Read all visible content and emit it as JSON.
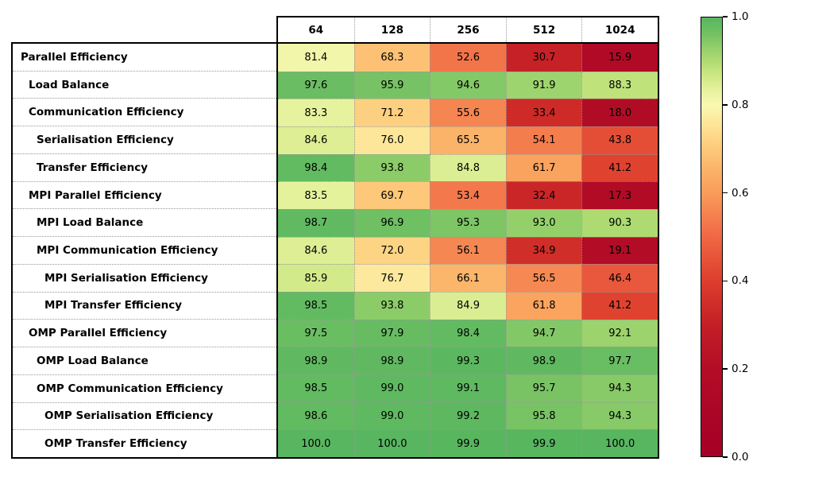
{
  "chart_data": {
    "type": "heatmap",
    "columns": [
      "64",
      "128",
      "256",
      "512",
      "1024"
    ],
    "rows": [
      {
        "name": "Parallel Efficiency",
        "indent": 0,
        "values": [
          81.4,
          68.3,
          52.6,
          30.7,
          15.9
        ]
      },
      {
        "name": "Load Balance",
        "indent": 1,
        "values": [
          97.6,
          95.9,
          94.6,
          91.9,
          88.3
        ]
      },
      {
        "name": "Communication Efficiency",
        "indent": 1,
        "values": [
          83.3,
          71.2,
          55.6,
          33.4,
          18.0
        ]
      },
      {
        "name": "Serialisation Efficiency",
        "indent": 2,
        "values": [
          84.6,
          76.0,
          65.5,
          54.1,
          43.8
        ]
      },
      {
        "name": "Transfer Efficiency",
        "indent": 2,
        "values": [
          98.4,
          93.8,
          84.8,
          61.7,
          41.2
        ]
      },
      {
        "name": "MPI Parallel Efficiency",
        "indent": 1,
        "values": [
          83.5,
          69.7,
          53.4,
          32.4,
          17.3
        ]
      },
      {
        "name": "MPI Load Balance",
        "indent": 2,
        "values": [
          98.7,
          96.9,
          95.3,
          93.0,
          90.3
        ]
      },
      {
        "name": "MPI Communication Efficiency",
        "indent": 2,
        "values": [
          84.6,
          72.0,
          56.1,
          34.9,
          19.1
        ]
      },
      {
        "name": "MPI Serialisation Efficiency",
        "indent": 3,
        "values": [
          85.9,
          76.7,
          66.1,
          56.5,
          46.4
        ]
      },
      {
        "name": "MPI Transfer Efficiency",
        "indent": 3,
        "values": [
          98.5,
          93.8,
          84.9,
          61.8,
          41.2
        ]
      },
      {
        "name": "OMP Parallel Efficiency",
        "indent": 1,
        "values": [
          97.5,
          97.9,
          98.4,
          94.7,
          92.1
        ]
      },
      {
        "name": "OMP Load Balance",
        "indent": 2,
        "values": [
          98.9,
          98.9,
          99.3,
          98.9,
          97.7
        ]
      },
      {
        "name": "OMP Communication Efficiency",
        "indent": 2,
        "values": [
          98.5,
          99.0,
          99.1,
          95.7,
          94.3
        ]
      },
      {
        "name": "OMP Serialisation Efficiency",
        "indent": 3,
        "values": [
          98.6,
          99.0,
          99.2,
          95.8,
          94.3
        ]
      },
      {
        "name": "OMP Transfer Efficiency",
        "indent": 3,
        "values": [
          100.0,
          100.0,
          99.9,
          99.9,
          100.0
        ]
      }
    ],
    "value_format_decimals": 1,
    "colorbar": {
      "min": 0.0,
      "max": 1.0,
      "ticks": [
        1.0,
        0.8,
        0.6,
        0.4,
        0.2,
        0.0
      ],
      "position": "right"
    },
    "colormap_stops": [
      [
        0.0,
        "#a50026"
      ],
      [
        0.1,
        "#ab0626"
      ],
      [
        0.2,
        "#b30d26"
      ],
      [
        0.3,
        "#c41f26"
      ],
      [
        0.4,
        "#dd3e2d"
      ],
      [
        0.5,
        "#f06744"
      ],
      [
        0.6,
        "#f99c5b"
      ],
      [
        0.65,
        "#fbb167"
      ],
      [
        0.7,
        "#fdc97a"
      ],
      [
        0.75,
        "#fee294"
      ],
      [
        0.8,
        "#faf8b2"
      ],
      [
        0.83,
        "#e9f3a0"
      ],
      [
        0.87,
        "#cbe782"
      ],
      [
        0.9,
        "#b0db72"
      ],
      [
        0.93,
        "#94d06a"
      ],
      [
        0.96,
        "#76c264"
      ],
      [
        1.0,
        "#57b65f"
      ]
    ],
    "grid_style": "dotted",
    "legend_position": "none"
  }
}
